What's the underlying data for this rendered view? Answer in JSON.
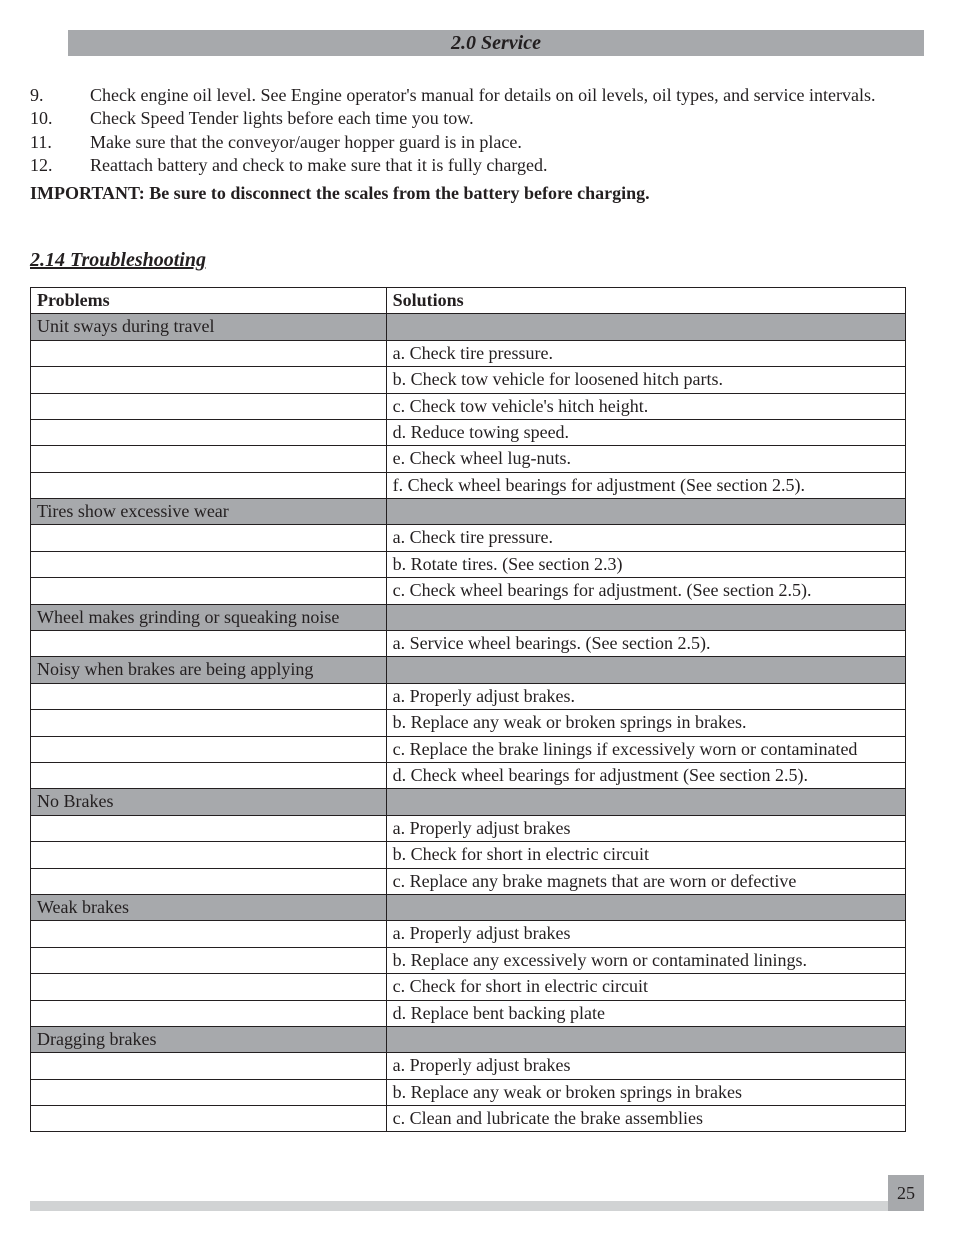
{
  "header": {
    "title": "2.0 Service"
  },
  "list": {
    "items": [
      {
        "num": "9.",
        "text": "Check engine oil level. See Engine operator's manual for details on oil levels, oil types, and service intervals."
      },
      {
        "num": "10.",
        "text": "Check Speed Tender lights before each time you tow."
      },
      {
        "num": "11.",
        "text": "Make sure that the conveyor/auger hopper guard is in place."
      },
      {
        "num": "12.",
        "text": "Reattach battery and check to make sure that it is fully charged."
      }
    ]
  },
  "important": "IMPORTANT: Be sure to disconnect the scales from the battery before charging.",
  "section": {
    "heading": "2.14 Troubleshooting"
  },
  "table": {
    "headers": {
      "problems": "Problems",
      "solutions": "Solutions"
    },
    "groups": [
      {
        "problem": "Unit sways during travel",
        "solutions": [
          "a. Check tire pressure.",
          "b. Check tow vehicle for loosened hitch parts.",
          "c. Check tow vehicle's hitch height.",
          "d. Reduce towing speed.",
          "e. Check wheel lug-nuts.",
          "f. Check wheel bearings for adjustment (See section 2.5)."
        ]
      },
      {
        "problem": "Tires show excessive wear",
        "solutions": [
          "a. Check tire pressure.",
          "b. Rotate tires. (See section 2.3)",
          "c. Check wheel bearings for adjustment. (See section 2.5)."
        ]
      },
      {
        "problem": "Wheel makes grinding or squeaking noise",
        "solutions": [
          "a. Service wheel bearings. (See section 2.5)."
        ]
      },
      {
        "problem": "Noisy when brakes are being applying",
        "solutions": [
          "a. Properly adjust brakes.",
          "b. Replace any weak or broken springs in brakes.",
          "c. Replace the brake linings if excessively worn or contaminated",
          "d. Check wheel bearings for adjustment (See section 2.5)."
        ]
      },
      {
        "problem": "No Brakes",
        "solutions": [
          "a. Properly adjust brakes",
          "b. Check for short in electric circuit",
          "c. Replace any brake magnets that are worn or defective"
        ]
      },
      {
        "problem": "Weak brakes",
        "solutions": [
          "a. Properly adjust brakes",
          "b. Replace any excessively worn or contaminated linings.",
          "c. Check for short in electric circuit",
          "d. Replace bent backing plate"
        ]
      },
      {
        "problem": "Dragging brakes",
        "solutions": [
          "a. Properly adjust brakes",
          "b. Replace any weak or broken springs in brakes",
          "c. Clean and lubricate the brake assemblies"
        ]
      }
    ]
  },
  "footer": {
    "page": "25"
  },
  "colors": {
    "header_bg": "#a7a9ac",
    "problem_row_bg": "#a7a9ac",
    "border": "#231f20",
    "text": "#231f20",
    "footer_line": "#d1d3d4",
    "footer_box": "#a7a9ac",
    "background": "#ffffff"
  },
  "typography": {
    "body_font": "Times New Roman",
    "body_size_pt": 13,
    "header_size_pt": 15,
    "header_italic": true,
    "header_bold": true
  }
}
